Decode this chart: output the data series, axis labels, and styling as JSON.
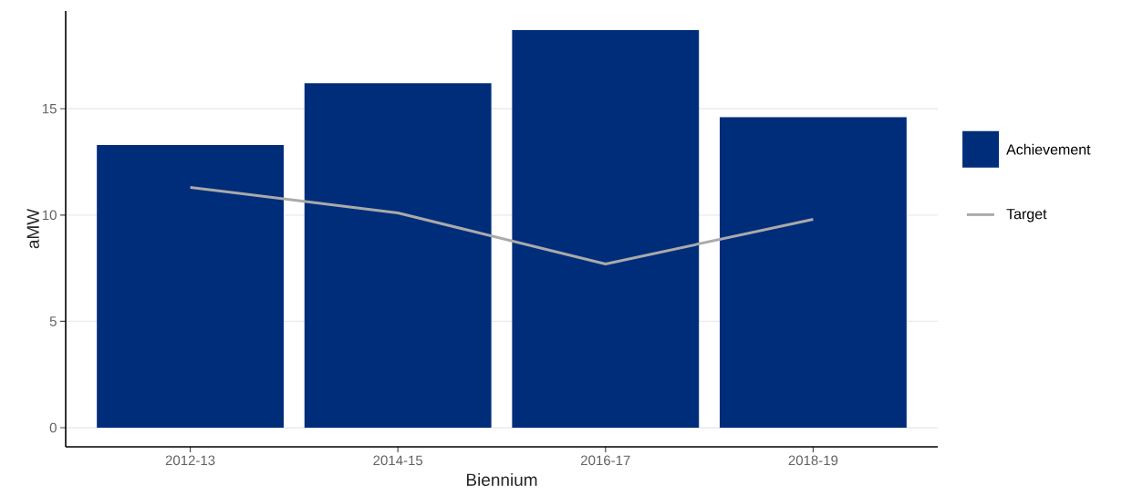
{
  "chart_data": {
    "type": "bar",
    "xlabel": "Biennium",
    "ylabel": "aMW",
    "categories": [
      "2012-13",
      "2014-15",
      "2016-17",
      "2018-19"
    ],
    "series": [
      {
        "name": "Achievement",
        "color": "#002d7a",
        "values": [
          13.3,
          16.2,
          18.7,
          14.6
        ]
      },
      {
        "name": "Target",
        "type": "line",
        "color": "#aaaaaa",
        "values": [
          11.3,
          10.1,
          7.7,
          9.8
        ]
      }
    ],
    "ylim": [
      -0.9,
      19.6
    ],
    "yticks": [
      0,
      5,
      10,
      15
    ],
    "grid": "y",
    "legend": "right"
  }
}
